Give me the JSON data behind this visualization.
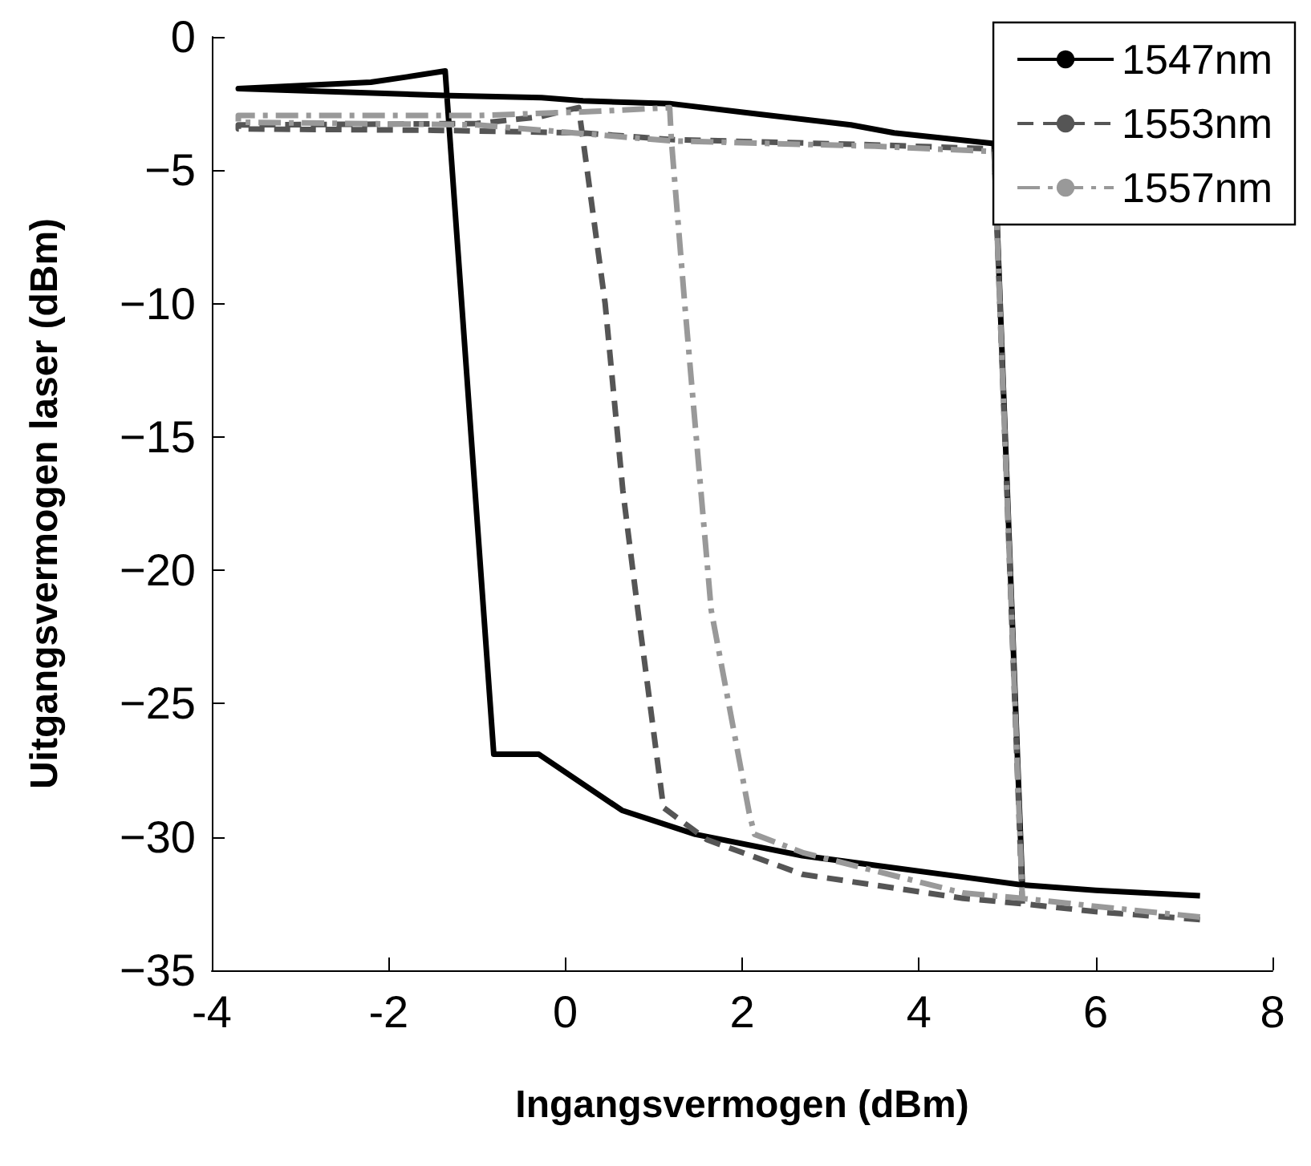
{
  "chart_data": {
    "type": "line",
    "xlabel": "Ingangsvermogen (dBm)",
    "ylabel": "Uitgangsvermogen laser (dBm)",
    "xlim": [
      -4,
      8
    ],
    "xticks": [
      -4,
      -2,
      0,
      2,
      4,
      6,
      8
    ],
    "ylim": [
      -35,
      0
    ],
    "yticks": [
      -35,
      -30,
      -25,
      -20,
      -15,
      -10,
      -5,
      0
    ],
    "grid": false,
    "legend": "top right",
    "marker": "none",
    "series": [
      {
        "name": "1547nm",
        "color": "#000000",
        "line_style": "solid",
        "x": [
          7.18,
          6.0,
          5.17,
          4.5,
          2.68,
          1.47,
          0.64,
          -0.3,
          -0.81,
          -1.36,
          -1.79,
          -2.2,
          -3.7,
          -1.3,
          -0.27,
          0.2,
          1.18,
          2.2,
          3.23,
          3.72,
          4.85,
          5.17
        ],
        "values": [
          -32.2,
          -32.0,
          -31.8,
          -31.5,
          -30.7,
          -29.9,
          -29.0,
          -26.9,
          -26.9,
          -1.28,
          -1.5,
          -1.7,
          -1.94,
          -2.2,
          -2.28,
          -2.4,
          -2.5,
          -2.9,
          -3.3,
          -3.6,
          -4.0,
          -31.8
        ]
      },
      {
        "name": "1553nm",
        "color": "#555555",
        "line_style": "dashed",
        "x": [
          7.18,
          6.0,
          5.17,
          4.5,
          2.68,
          1.6,
          1.11,
          0.82,
          0.65,
          0.45,
          0.2,
          0.15,
          -0.3,
          -1.0,
          -3.7,
          -3.7,
          -1.5,
          0.2,
          1.2,
          3.5,
          4.85,
          5.17
        ],
        "values": [
          -33.1,
          -32.8,
          -32.5,
          -32.3,
          -31.4,
          -30.1,
          -28.9,
          -21.5,
          -17,
          -10,
          -3.85,
          -2.65,
          -3.0,
          -3.25,
          -3.3,
          -3.45,
          -3.5,
          -3.6,
          -3.85,
          -4.05,
          -4.2,
          -32.5
        ]
      },
      {
        "name": "1557nm",
        "color": "#999999",
        "line_style": "dashdot",
        "x": [
          7.18,
          6.0,
          5.17,
          4.5,
          2.7,
          2.14,
          2.08,
          1.65,
          1.35,
          1.2,
          1.18,
          0.3,
          -1.0,
          -3.7,
          -3.7,
          -1.0,
          1.2,
          3.5,
          4.85,
          5.17
        ],
        "values": [
          -33.0,
          -32.6,
          -32.3,
          -32.1,
          -30.6,
          -29.9,
          -29.1,
          -21.5,
          -10,
          -3.9,
          -2.65,
          -2.8,
          -2.95,
          -2.95,
          -3.2,
          -3.3,
          -3.9,
          -4.1,
          -4.3,
          -32.3
        ]
      }
    ]
  }
}
